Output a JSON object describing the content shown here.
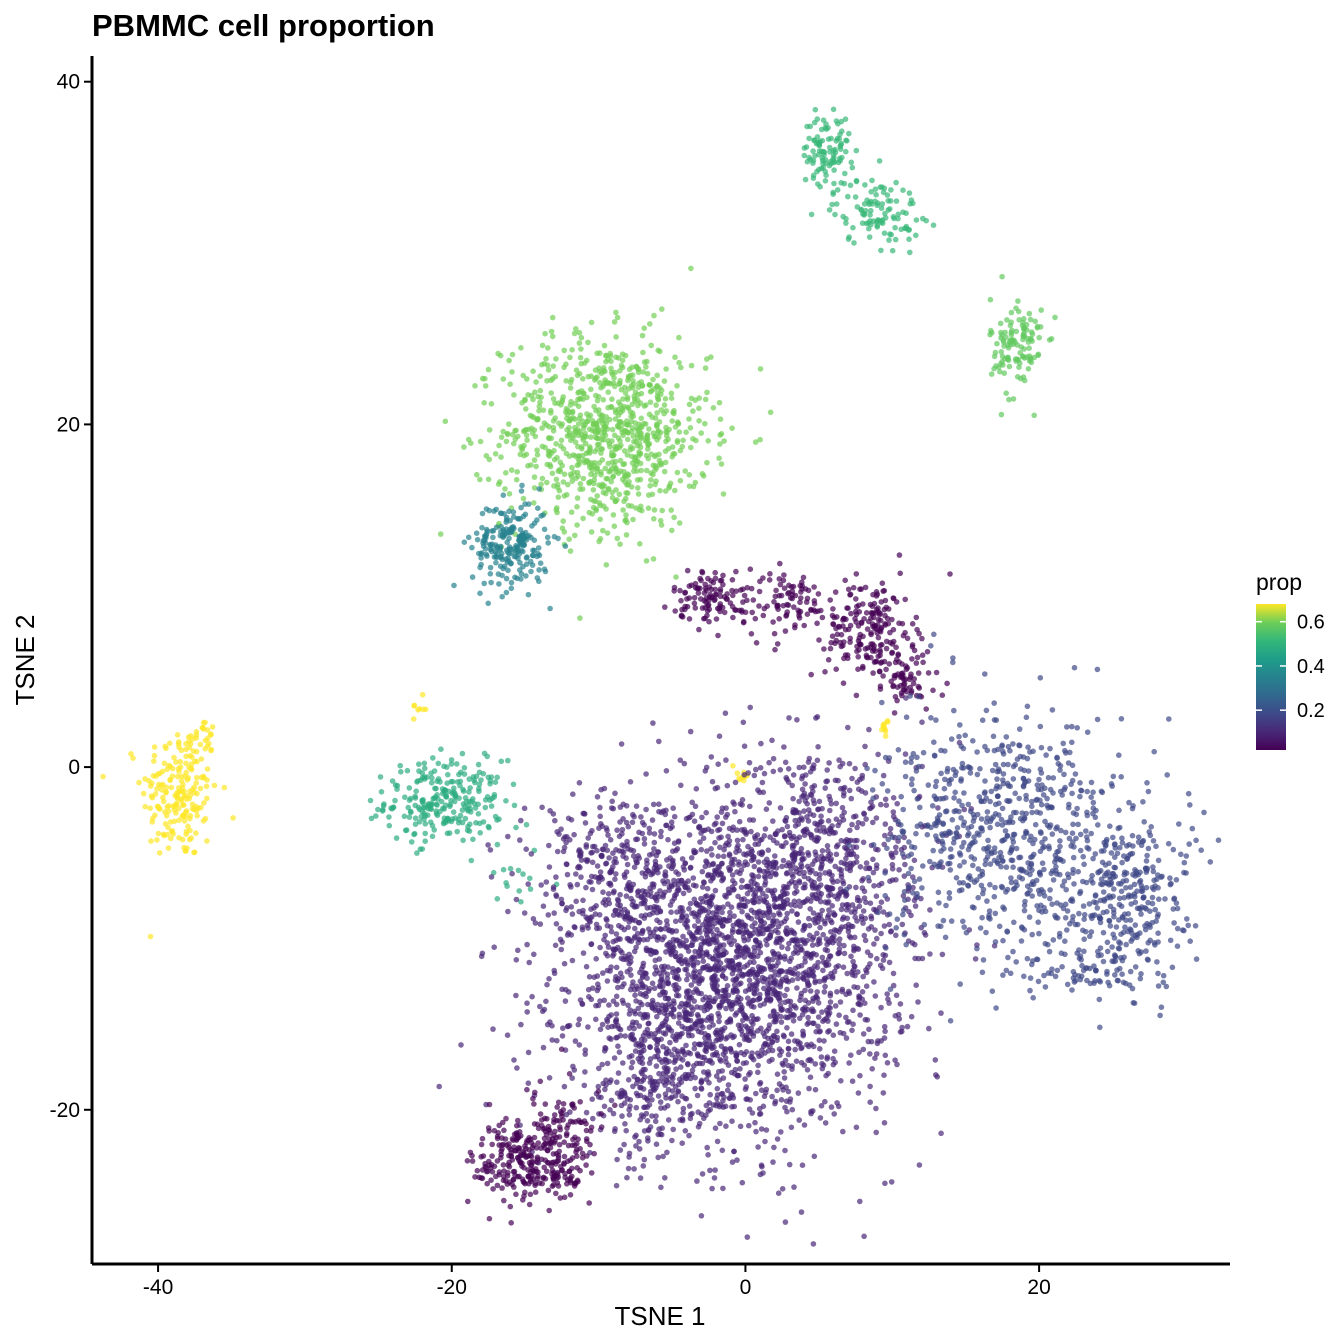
{
  "chart_data": {
    "type": "scatter",
    "title": "PBMMC cell proportion",
    "xlabel": "TSNE 1",
    "ylabel": "TSNE 2",
    "xlim": [
      -44.5,
      33
    ],
    "ylim": [
      -29,
      41.5
    ],
    "xticks": [
      -40,
      -20,
      0,
      20
    ],
    "yticks": [
      -20,
      0,
      20,
      40
    ],
    "grid": false,
    "color_scale": "viridis",
    "legend": {
      "title": "prop",
      "placement": "right",
      "range": [
        0.02,
        0.68
      ],
      "ticks": [
        0.2,
        0.4,
        0.6
      ],
      "tick_labels": [
        "0.2",
        "0.4",
        "0.6"
      ]
    },
    "point_opacity": 0.7,
    "clusters": [
      {
        "center": [
          -38.5,
          -1.5
        ],
        "spread": [
          1.3,
          2.0
        ],
        "prop": 0.68,
        "n": 200
      },
      {
        "center": [
          -37,
          2.0
        ],
        "spread": [
          0.5,
          0.4
        ],
        "prop": 0.68,
        "n": 15
      },
      {
        "center": [
          -22.2,
          3.5
        ],
        "spread": [
          0.25,
          0.3
        ],
        "prop": 0.68,
        "n": 8
      },
      {
        "center": [
          -20.5,
          -2.0
        ],
        "spread": [
          2.0,
          1.2
        ],
        "prop": 0.48,
        "n": 250
      },
      {
        "center": [
          -15.5,
          -6.5
        ],
        "spread": [
          1.5,
          1.5
        ],
        "prop": 0.48,
        "n": 15
      },
      {
        "center": [
          -9.5,
          19.5
        ],
        "spread": [
          3.5,
          2.8
        ],
        "prop": 0.6,
        "n": 900
      },
      {
        "center": [
          -16,
          13.0
        ],
        "spread": [
          1.3,
          1.3
        ],
        "prop": 0.35,
        "n": 220
      },
      {
        "center": [
          5.5,
          36.0
        ],
        "spread": [
          0.8,
          1.0
        ],
        "prop": 0.52,
        "n": 100
      },
      {
        "center": [
          9.0,
          32.5
        ],
        "spread": [
          1.5,
          1.0
        ],
        "prop": 0.52,
        "n": 110
      },
      {
        "center": [
          18.5,
          24.5
        ],
        "spread": [
          0.9,
          1.5
        ],
        "prop": 0.58,
        "n": 120
      },
      {
        "center": [
          -2,
          10.0
        ],
        "spread": [
          1.5,
          0.8
        ],
        "prop": 0.02,
        "n": 120
      },
      {
        "center": [
          3,
          9.5
        ],
        "spread": [
          1.5,
          1.0
        ],
        "prop": 0.02,
        "n": 80
      },
      {
        "center": [
          8.5,
          8.0
        ],
        "spread": [
          1.5,
          1.5
        ],
        "prop": 0.02,
        "n": 200
      },
      {
        "center": [
          11,
          5.0
        ],
        "spread": [
          1.2,
          1.0
        ],
        "prop": 0.02,
        "n": 60
      },
      {
        "center": [
          -0.2,
          -0.4
        ],
        "spread": [
          0.3,
          0.3
        ],
        "prop": 0.68,
        "n": 10
      },
      {
        "center": [
          9.5,
          2.2
        ],
        "spread": [
          0.3,
          0.3
        ],
        "prop": 0.68,
        "n": 10
      },
      {
        "center": [
          -1,
          -12.0
        ],
        "spread": [
          5.5,
          4.5
        ],
        "prop": 0.1,
        "n": 2300
      },
      {
        "center": [
          5,
          -5.0
        ],
        "spread": [
          3.5,
          3.5
        ],
        "prop": 0.1,
        "n": 550
      },
      {
        "center": [
          -9,
          -6.0
        ],
        "spread": [
          3.0,
          2.5
        ],
        "prop": 0.1,
        "n": 300
      },
      {
        "center": [
          -6,
          -18.0
        ],
        "spread": [
          3.0,
          2.5
        ],
        "prop": 0.1,
        "n": 250
      },
      {
        "center": [
          -14.5,
          -23.0
        ],
        "spread": [
          2.0,
          1.3
        ],
        "prop": 0.02,
        "n": 300
      },
      {
        "center": [
          -12,
          -21.0
        ],
        "spread": [
          1.2,
          1.2
        ],
        "prop": 0.02,
        "n": 60
      },
      {
        "center": [
          17.5,
          -4.0
        ],
        "spread": [
          4.0,
          3.5
        ],
        "prop": 0.18,
        "n": 700
      },
      {
        "center": [
          26,
          -7.0
        ],
        "spread": [
          2.0,
          2.5
        ],
        "prop": 0.18,
        "n": 300
      },
      {
        "center": [
          23.5,
          -12.0
        ],
        "spread": [
          2.5,
          0.8
        ],
        "prop": 0.18,
        "n": 80
      }
    ]
  }
}
